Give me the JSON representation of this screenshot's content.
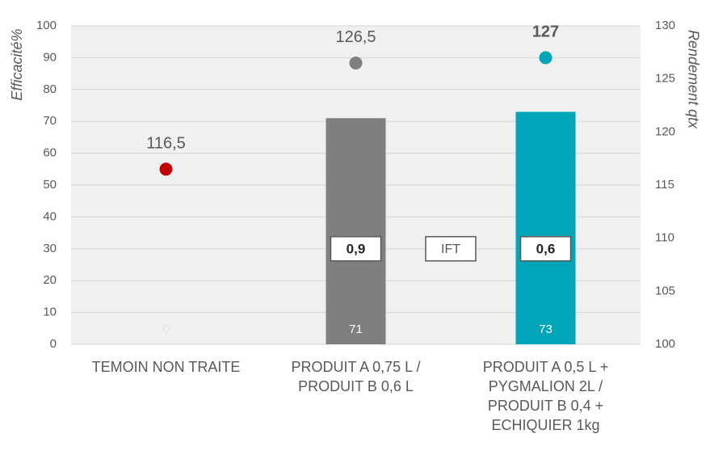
{
  "chart_data": {
    "type": "bar",
    "y_label": "Efficacité%",
    "y2_label": "Rendement qtx",
    "categories": [
      "TEMOIN NON TRAITE",
      "PRODUIT A  0,75 L /\nPRODUIT B  0,6 L",
      "PRODUIT A  0,5 L +\nPYGMALION 2L /\nPRODUIT B 0,4 +\nECHIQUIER 1kg"
    ],
    "series": [
      {
        "type": "bar",
        "colors": [
          "#7f7f7f",
          "#7f7f7f",
          "#00a5b8"
        ],
        "values": [
          0,
          71,
          73
        ],
        "label_colors": [
          "#e4e4e4",
          "#ffffff",
          "#ffffff"
        ]
      },
      {
        "type": "scatter",
        "axis": "y2",
        "colors": [
          "#c00000",
          "#7f7f7f",
          "#00a5b8"
        ],
        "values": [
          116.5,
          126.5,
          127
        ],
        "value_labels": [
          "116,5",
          "126,5",
          "127"
        ],
        "label_bold": [
          false,
          false,
          true
        ]
      }
    ],
    "ift": {
      "label": "IFT",
      "values": [
        null,
        0.9,
        0.6
      ],
      "value_labels": [
        null,
        "0,9",
        "0,6"
      ]
    },
    "ylim": [
      0,
      100
    ],
    "yticks": [
      0,
      10,
      20,
      30,
      40,
      50,
      60,
      70,
      80,
      90,
      100
    ],
    "y2lim": [
      100,
      130
    ],
    "y2ticks": [
      100,
      105,
      110,
      115,
      120,
      125,
      130
    ],
    "grid": true,
    "plot_background": "#f0f0f0"
  }
}
